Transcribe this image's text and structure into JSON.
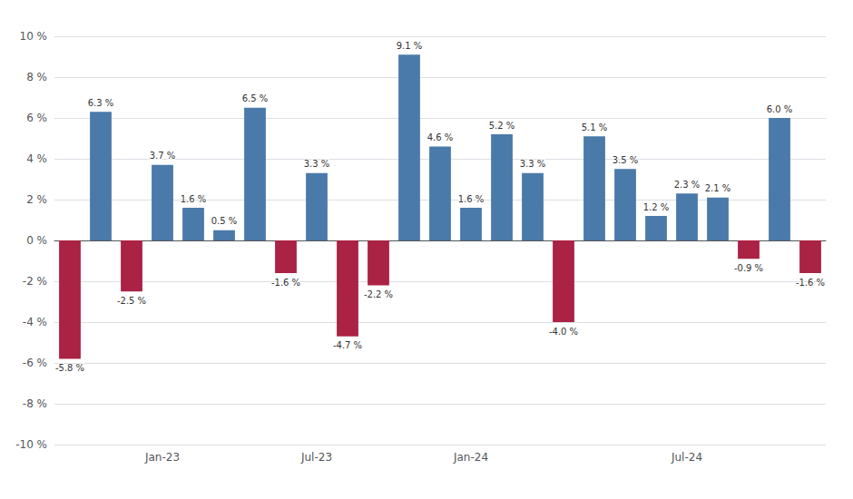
{
  "chart_data": {
    "type": "bar",
    "categories": [
      null,
      null,
      null,
      "Jan-23",
      null,
      null,
      null,
      null,
      "Jul-23",
      null,
      null,
      null,
      null,
      "Jan-24",
      null,
      null,
      null,
      null,
      null,
      null,
      "Jul-24",
      null,
      null,
      null,
      null
    ],
    "values": [
      -5.8,
      6.3,
      -2.5,
      3.7,
      1.6,
      0.5,
      6.5,
      -1.6,
      3.3,
      -4.7,
      -2.2,
      9.1,
      4.6,
      1.6,
      5.2,
      3.3,
      -4.0,
      5.1,
      3.5,
      1.2,
      2.3,
      2.1,
      -0.9,
      6.0,
      -1.6
    ],
    "value_labels": [
      "-5.8 %",
      "6.3 %",
      "-2.5 %",
      "3.7 %",
      "1.6 %",
      "0.5 %",
      "6.5 %",
      "-1.6 %",
      "3.3 %",
      "-4.7 %",
      "-2.2 %",
      "9.1 %",
      "4.6 %",
      "1.6 %",
      "5.2 %",
      "3.3 %",
      "-4.0 %",
      "5.1 %",
      "3.5 %",
      "1.2 %",
      "2.3 %",
      "2.1 %",
      "-0.9 %",
      "6.0 %",
      "-1.6 %"
    ],
    "colors": [
      "#aa2244",
      "#4a7aaa",
      "#aa2244",
      "#4a7aaa",
      "#4a7aaa",
      "#4a7aaa",
      "#4a7aaa",
      "#aa2244",
      "#4a7aaa",
      "#aa2244",
      "#aa2244",
      "#4a7aaa",
      "#4a7aaa",
      "#4a7aaa",
      "#4a7aaa",
      "#4a7aaa",
      "#aa2244",
      "#4a7aaa",
      "#4a7aaa",
      "#4a7aaa",
      "#4a7aaa",
      "#4a7aaa",
      "#aa2244",
      "#4a7aaa",
      "#aa2244"
    ],
    "ylim": [
      -10,
      10
    ],
    "yticks": [
      {
        "value": -10,
        "label": "-10 %"
      },
      {
        "value": -8,
        "label": "-8 %"
      },
      {
        "value": -6,
        "label": "-6 %"
      },
      {
        "value": -4,
        "label": "-4 %"
      },
      {
        "value": -2,
        "label": "-2 %"
      },
      {
        "value": 0,
        "label": "0 %"
      },
      {
        "value": 2,
        "label": "2 %"
      },
      {
        "value": 4,
        "label": "4 %"
      },
      {
        "value": 6,
        "label": "6 %"
      },
      {
        "value": 8,
        "label": "8 %"
      },
      {
        "value": 10,
        "label": "10 %"
      }
    ],
    "grid": true,
    "data_labels": true
  }
}
